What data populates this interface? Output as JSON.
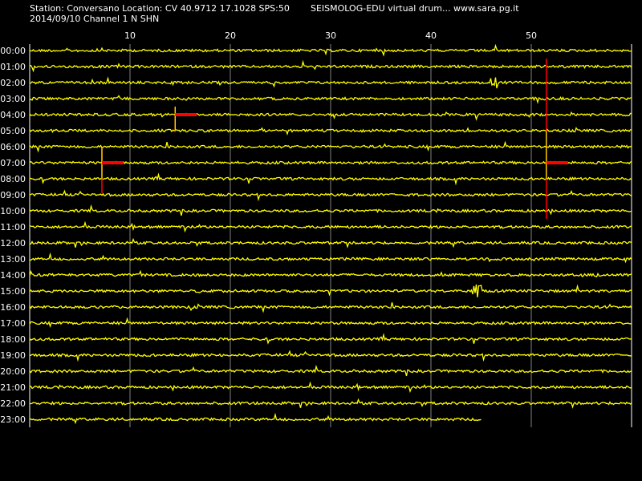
{
  "header": {
    "station_line": "Station: Conversano Location: CV 40.9712 17.1028 SPS:50",
    "app_line": "SEISMOLOG-EDU virtual drum... www.sara.pg.it",
    "date_channel": "2014/09/10  Channel 1 N SHN"
  },
  "colors": {
    "background": "#000000",
    "trace": "#ffff00",
    "event": "#ff0000",
    "grid": "#ffffff"
  },
  "chart_data": {
    "type": "line",
    "title": "",
    "xlabel": "",
    "ylabel": "",
    "xlim": [
      0,
      60
    ],
    "x_ticks": [
      10,
      20,
      30,
      40,
      50
    ],
    "x_tick_labels": [
      "10",
      "20",
      "30",
      "40",
      "50"
    ],
    "grid": true,
    "rows": [
      "00:00",
      "01:00",
      "02:00",
      "03:00",
      "04:00",
      "05:00",
      "06:00",
      "07:00",
      "08:00",
      "09:00",
      "10:00",
      "11:00",
      "12:00",
      "13:00",
      "14:00",
      "15:00",
      "16:00",
      "17:00",
      "18:00",
      "19:00",
      "20:00",
      "21:00",
      "22:00",
      "23:00"
    ],
    "last_row_end_minute": 45,
    "events": [
      {
        "row": "04:00",
        "minute": 14.5,
        "span_rows": [
          3.5,
          5.1
        ],
        "marker_minutes": 2
      },
      {
        "row": "07:00",
        "minute": 7.2,
        "span_rows": [
          6.0,
          8.9
        ],
        "marker_minutes": 2
      },
      {
        "row": "07:00",
        "minute": 51.5,
        "span_rows": [
          0.5,
          10.5
        ],
        "marker_minutes": 2
      }
    ],
    "burst_rows": [
      "02:00",
      "15:00"
    ]
  }
}
